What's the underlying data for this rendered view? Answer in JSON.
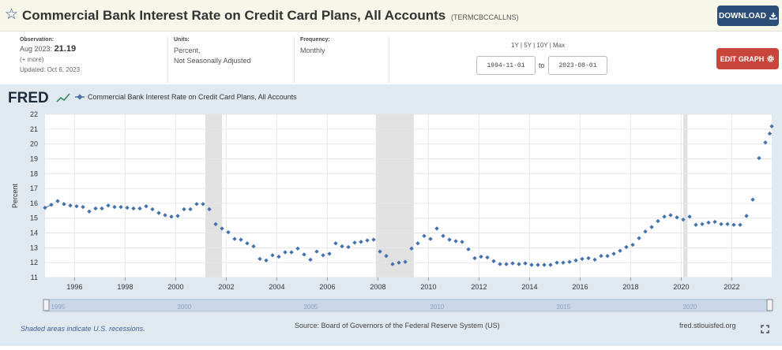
{
  "header": {
    "title": "Commercial Bank Interest Rate on Credit Card Plans, All Accounts",
    "series_id": "(TERMCBCCALLNS)",
    "download_label": "DOWNLOAD",
    "star_icon": "star-outline-icon",
    "download_icon": "download-arrow-icon"
  },
  "meta": {
    "observation_label": "Observation:",
    "observation_date": "Aug 2023:",
    "observation_value": "21.19",
    "more_label": "(+ more)",
    "updated": "Updated: Oct 6, 2023",
    "units_label": "Units:",
    "units_line1": "Percent,",
    "units_line2": "Not Seasonally Adjusted",
    "frequency_label": "Frequency:",
    "frequency_value": "Monthly",
    "range_links": [
      "1Y",
      "5Y",
      "10Y",
      "Max"
    ],
    "range_separator": "|",
    "start_date": "1994-11-01",
    "to_label": "to",
    "end_date": "2023-08-01",
    "edit_label": "EDIT GRAPH",
    "edit_icon": "gear-icon"
  },
  "footer": {
    "recession_note": "Shaded areas indicate U.S. recessions.",
    "source": "Source: Board of Governors of the Federal Reserve System (US)",
    "site": "fred.stlouisfed.org",
    "fullscreen_icon": "fullscreen-icon"
  },
  "colors": {
    "series": "#4572a7",
    "recession": "#e1e1e1",
    "plot_bg": "#ffffff",
    "chart_bg": "#e1e9f0",
    "download_button": "#2b4d77",
    "edit_button": "#c8453b"
  },
  "chart_data": {
    "type": "line",
    "logo": "FRED",
    "legend": "Commercial Bank Interest Rate on Credit Card Plans, All Accounts",
    "ylabel": "Percent",
    "ylim": [
      11,
      22
    ],
    "yticks": [
      11,
      12,
      13,
      14,
      15,
      16,
      17,
      18,
      19,
      20,
      21,
      22
    ],
    "xlim": [
      1994.83,
      2023.58
    ],
    "xticks": [
      1996,
      1998,
      2000,
      2002,
      2004,
      2006,
      2008,
      2010,
      2012,
      2014,
      2016,
      2018,
      2020,
      2022
    ],
    "grid": true,
    "recessions": [
      [
        2001.17,
        2001.83
      ],
      [
        2007.92,
        2009.42
      ],
      [
        2020.08,
        2020.25
      ]
    ],
    "navigator_labels": [
      "1995",
      "2000",
      "2005",
      "2010",
      "2015",
      "2020"
    ],
    "series": [
      {
        "name": "Commercial Bank Interest Rate on Credit Card Plans, All Accounts",
        "points": [
          [
            1994.83,
            15.7
          ],
          [
            1995.08,
            15.9
          ],
          [
            1995.33,
            16.15
          ],
          [
            1995.58,
            15.95
          ],
          [
            1995.83,
            15.85
          ],
          [
            1996.08,
            15.8
          ],
          [
            1996.33,
            15.75
          ],
          [
            1996.58,
            15.45
          ],
          [
            1996.83,
            15.65
          ],
          [
            1997.08,
            15.65
          ],
          [
            1997.33,
            15.85
          ],
          [
            1997.58,
            15.75
          ],
          [
            1997.83,
            15.75
          ],
          [
            1998.08,
            15.7
          ],
          [
            1998.33,
            15.65
          ],
          [
            1998.58,
            15.65
          ],
          [
            1998.83,
            15.8
          ],
          [
            1999.08,
            15.6
          ],
          [
            1999.33,
            15.35
          ],
          [
            1999.58,
            15.2
          ],
          [
            1999.83,
            15.1
          ],
          [
            2000.08,
            15.15
          ],
          [
            2000.33,
            15.6
          ],
          [
            2000.58,
            15.6
          ],
          [
            2000.83,
            15.95
          ],
          [
            2001.08,
            15.95
          ],
          [
            2001.33,
            15.6
          ],
          [
            2001.58,
            14.6
          ],
          [
            2001.83,
            14.3
          ],
          [
            2002.08,
            14.05
          ],
          [
            2002.33,
            13.6
          ],
          [
            2002.58,
            13.55
          ],
          [
            2002.83,
            13.3
          ],
          [
            2003.08,
            13.1
          ],
          [
            2003.33,
            12.25
          ],
          [
            2003.58,
            12.15
          ],
          [
            2003.83,
            12.5
          ],
          [
            2004.08,
            12.4
          ],
          [
            2004.33,
            12.7
          ],
          [
            2004.58,
            12.7
          ],
          [
            2004.83,
            12.95
          ],
          [
            2005.08,
            12.55
          ],
          [
            2005.33,
            12.2
          ],
          [
            2005.58,
            12.75
          ],
          [
            2005.83,
            12.5
          ],
          [
            2006.08,
            12.6
          ],
          [
            2006.33,
            13.3
          ],
          [
            2006.58,
            13.1
          ],
          [
            2006.83,
            13.05
          ],
          [
            2007.08,
            13.35
          ],
          [
            2007.33,
            13.4
          ],
          [
            2007.58,
            13.5
          ],
          [
            2007.83,
            13.55
          ],
          [
            2008.08,
            12.75
          ],
          [
            2008.33,
            12.45
          ],
          [
            2008.58,
            11.9
          ],
          [
            2008.83,
            12.0
          ],
          [
            2009.08,
            12.05
          ],
          [
            2009.33,
            12.95
          ],
          [
            2009.58,
            13.3
          ],
          [
            2009.83,
            13.8
          ],
          [
            2010.08,
            13.6
          ],
          [
            2010.33,
            14.3
          ],
          [
            2010.58,
            13.8
          ],
          [
            2010.83,
            13.55
          ],
          [
            2011.08,
            13.45
          ],
          [
            2011.33,
            13.4
          ],
          [
            2011.58,
            12.9
          ],
          [
            2011.83,
            12.3
          ],
          [
            2012.08,
            12.4
          ],
          [
            2012.33,
            12.35
          ],
          [
            2012.58,
            12.1
          ],
          [
            2012.83,
            11.9
          ],
          [
            2013.08,
            11.9
          ],
          [
            2013.33,
            11.95
          ],
          [
            2013.58,
            11.9
          ],
          [
            2013.83,
            11.95
          ],
          [
            2014.08,
            11.85
          ],
          [
            2014.33,
            11.85
          ],
          [
            2014.58,
            11.85
          ],
          [
            2014.83,
            11.85
          ],
          [
            2015.08,
            12.0
          ],
          [
            2015.33,
            12.0
          ],
          [
            2015.58,
            12.05
          ],
          [
            2015.83,
            12.15
          ],
          [
            2016.08,
            12.25
          ],
          [
            2016.33,
            12.3
          ],
          [
            2016.58,
            12.2
          ],
          [
            2016.83,
            12.45
          ],
          [
            2017.08,
            12.45
          ],
          [
            2017.33,
            12.6
          ],
          [
            2017.58,
            12.8
          ],
          [
            2017.83,
            13.05
          ],
          [
            2018.08,
            13.2
          ],
          [
            2018.33,
            13.65
          ],
          [
            2018.58,
            14.1
          ],
          [
            2018.83,
            14.4
          ],
          [
            2019.08,
            14.8
          ],
          [
            2019.33,
            15.1
          ],
          [
            2019.58,
            15.2
          ],
          [
            2019.83,
            15.05
          ],
          [
            2020.08,
            14.9
          ],
          [
            2020.33,
            15.1
          ],
          [
            2020.58,
            14.55
          ],
          [
            2020.83,
            14.6
          ],
          [
            2021.08,
            14.7
          ],
          [
            2021.33,
            14.75
          ],
          [
            2021.58,
            14.6
          ],
          [
            2021.83,
            14.6
          ],
          [
            2022.08,
            14.55
          ],
          [
            2022.33,
            14.55
          ],
          [
            2022.58,
            15.15
          ],
          [
            2022.83,
            16.25
          ],
          [
            2023.08,
            19.05
          ],
          [
            2023.33,
            20.1
          ],
          [
            2023.5,
            20.7
          ],
          [
            2023.58,
            21.19
          ]
        ]
      }
    ]
  }
}
